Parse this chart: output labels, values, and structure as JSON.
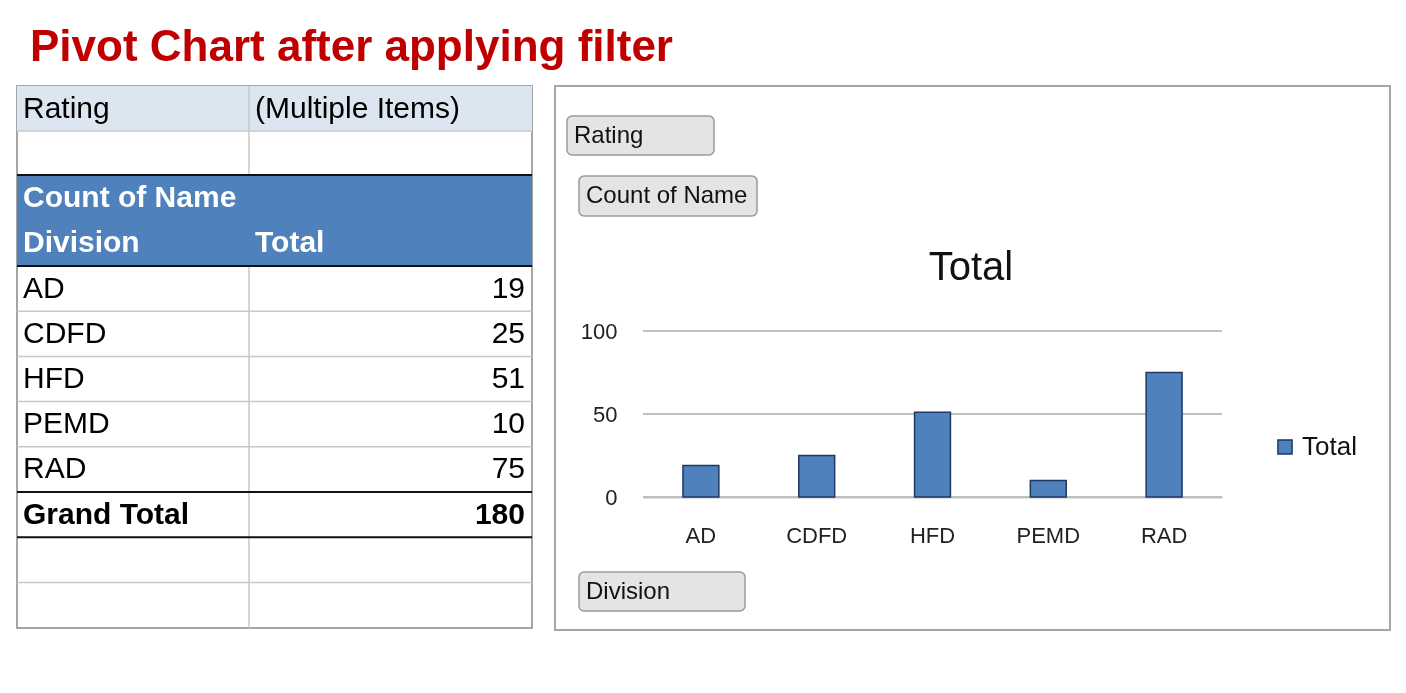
{
  "chart_data": [
    {
      "type": "other",
      "title": "Pivot Chart after applying filter",
      "annotations": [
        "Rating",
        "(Multiple Items)",
        "Count of Name",
        "Division",
        "Total",
        "AD",
        "19",
        "CDFD",
        "25",
        "HFD",
        "51",
        "PEMD",
        "10",
        "RAD",
        "75",
        "Grand Total",
        "180"
      ]
    },
    {
      "type": "bar",
      "title": "Total",
      "categories": [
        "AD",
        "CDFD",
        "HFD",
        "PEMD",
        "RAD"
      ],
      "series": [
        {
          "name": "Total",
          "color": "#4f81bd",
          "values": [
            19,
            25,
            51,
            10,
            75
          ]
        }
      ],
      "ylim": [
        0,
        100
      ],
      "yticks": [
        0,
        50,
        100
      ],
      "grid": "y",
      "legend": "right",
      "annotations": [
        "Rating",
        "Count of Name",
        "Division"
      ]
    }
  ]
}
